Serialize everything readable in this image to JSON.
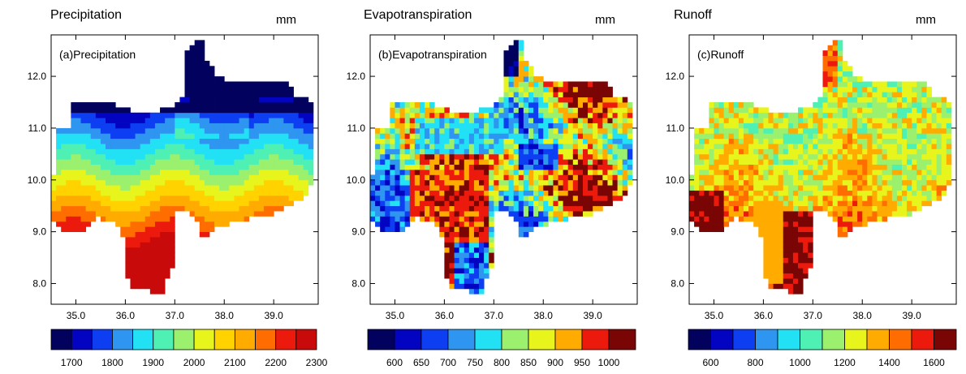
{
  "panels": [
    {
      "id": "precipitation",
      "title": "Precipitation",
      "unit": "mm",
      "label": "(a)Precipitation",
      "colorbar": {
        "labels": [
          "1700",
          "1800",
          "1900",
          "2000",
          "2100",
          "2200",
          "2300"
        ]
      }
    },
    {
      "id": "evapotranspiration",
      "title": "Evapotranspiration",
      "unit": "mm",
      "label": "(b)Evapotranspiration",
      "colorbar": {
        "labels": [
          "600",
          "650",
          "700",
          "750",
          "800",
          "850",
          "900",
          "950",
          "1000"
        ]
      }
    },
    {
      "id": "runoff",
      "title": "Runoff",
      "unit": "mm",
      "label": "(c)Runoff",
      "colorbar": {
        "labels": [
          "600",
          "800",
          "1000",
          "1200",
          "1400",
          "1600"
        ]
      }
    }
  ],
  "chart_data": [
    {
      "type": "heatmap",
      "title": "Precipitation",
      "unit": "mm",
      "panel_label": "(a)Precipitation",
      "xlim": [
        34.5,
        39.9
      ],
      "ylim": [
        7.6,
        12.8
      ],
      "xticks": [
        "35.0",
        "36.0",
        "37.0",
        "38.0",
        "39.0"
      ],
      "yticks": [
        "8.0",
        "9.0",
        "10.0",
        "11.0",
        "12.0"
      ],
      "colorbar": {
        "min": 1650,
        "max": 2350,
        "step": 50,
        "labels": [
          "1700",
          "1800",
          "1900",
          "2000",
          "2100",
          "2200",
          "2300"
        ]
      },
      "pattern": "north-south gradient: ~2300 mm in the south, decreasing to ~1800 mm in the north"
    },
    {
      "type": "heatmap",
      "title": "Evapotranspiration",
      "unit": "mm",
      "panel_label": "(b)Evapotranspiration",
      "xlim": [
        34.5,
        39.9
      ],
      "ylim": [
        7.6,
        12.8
      ],
      "xticks": [
        "35.0",
        "36.0",
        "37.0",
        "38.0",
        "39.0"
      ],
      "yticks": [
        "8.0",
        "9.0",
        "10.0",
        "11.0",
        "12.0"
      ],
      "colorbar": {
        "min": 575,
        "max": 1025,
        "step": 50,
        "labels": [
          "600",
          "650",
          "700",
          "750",
          "800",
          "850",
          "900",
          "950",
          "1000"
        ]
      },
      "pattern": "patchy field, mostly 800-1000 mm with low (<700 mm) patches in the west, south and north"
    },
    {
      "type": "heatmap",
      "title": "Runoff",
      "unit": "mm",
      "panel_label": "(c)Runoff",
      "xlim": [
        34.5,
        39.9
      ],
      "ylim": [
        7.6,
        12.8
      ],
      "xticks": [
        "35.0",
        "36.0",
        "37.0",
        "38.0",
        "39.0"
      ],
      "yticks": [
        "8.0",
        "9.0",
        "10.0",
        "11.0",
        "12.0"
      ],
      "colorbar": {
        "min": 500,
        "max": 1700,
        "step": 100,
        "labels": [
          "600",
          "800",
          "1000",
          "1200",
          "1400",
          "1600"
        ]
      },
      "pattern": "~1000-1200 mm in the north, increasing to >1600 mm in the south"
    }
  ]
}
